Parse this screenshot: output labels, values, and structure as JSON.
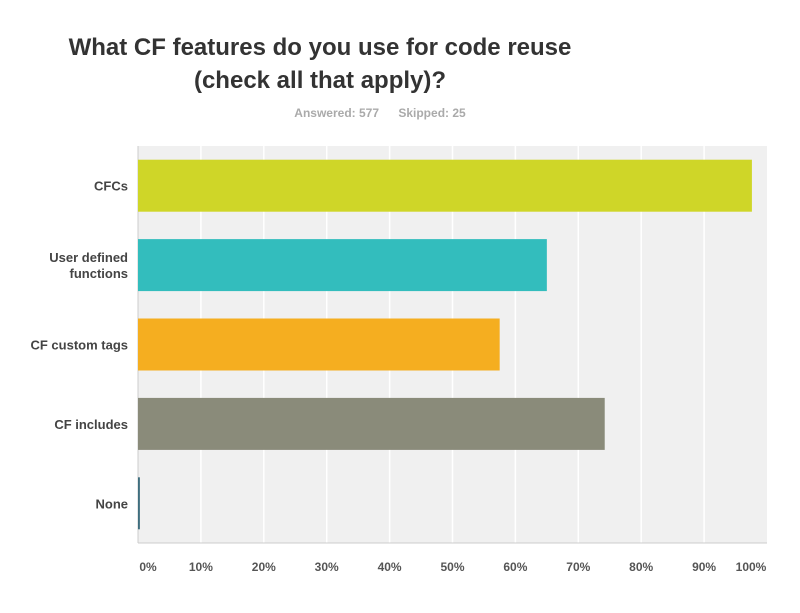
{
  "chart_data": {
    "type": "bar",
    "orientation": "horizontal",
    "title_lines": [
      "What CF features do you use for code reuse",
      "(check all that apply)?"
    ],
    "answered": "Answered: 577",
    "skipped": "Skipped: 25",
    "categories": [
      "CFCs",
      "User defined functions",
      "CF custom tags",
      "CF includes",
      "None"
    ],
    "category_lines": [
      [
        "CFCs"
      ],
      [
        "User defined",
        "functions"
      ],
      [
        "CF custom tags"
      ],
      [
        "CF includes"
      ],
      [
        "None"
      ]
    ],
    "values": [
      97.6,
      65.0,
      57.5,
      74.2,
      0.3
    ],
    "colors": [
      "#cfd628",
      "#33bdbd",
      "#f5ae20",
      "#8a8b7a",
      "#3e6e7e"
    ],
    "xlim": [
      0,
      100
    ],
    "xticks": [
      "0%",
      "10%",
      "20%",
      "30%",
      "40%",
      "50%",
      "60%",
      "70%",
      "80%",
      "90%",
      "100%"
    ],
    "grid": true,
    "plot_background": "#f0f0f0",
    "legend": "none"
  }
}
